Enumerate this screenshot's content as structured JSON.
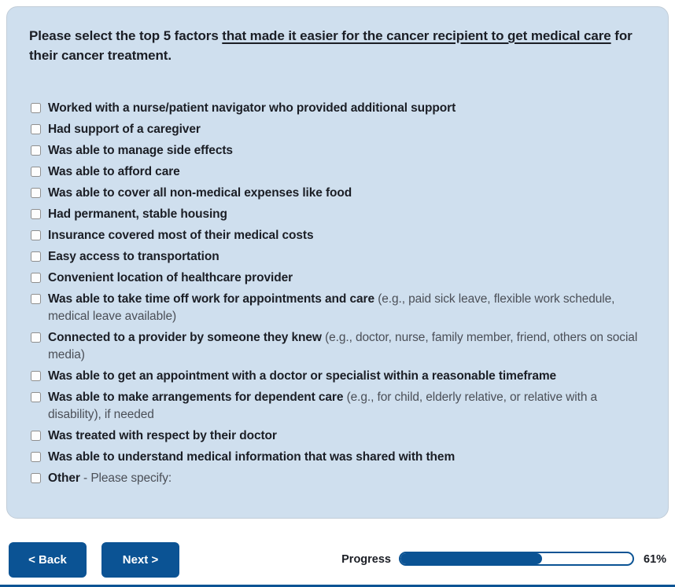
{
  "question": {
    "pre": "Please select the top 5 factors ",
    "underlined": "that made it easier for the cancer recipient to get medical care",
    "post": " for their cancer treatment."
  },
  "checklist": {
    "items": [
      {
        "bold": "Worked with a nurse/patient navigator who provided additional support",
        "normal": ""
      },
      {
        "bold": "Had support of a caregiver",
        "normal": ""
      },
      {
        "bold": "Was able to manage side effects",
        "normal": ""
      },
      {
        "bold": "Was able to afford care",
        "normal": ""
      },
      {
        "bold": "Was able to cover all non-medical expenses like food",
        "normal": ""
      },
      {
        "bold": "Had permanent, stable housing",
        "normal": ""
      },
      {
        "bold": "Insurance covered most of their medical costs",
        "normal": ""
      },
      {
        "bold": "Easy access to transportation",
        "normal": ""
      },
      {
        "bold": "Convenient location of healthcare provider",
        "normal": ""
      },
      {
        "bold": "Was able to take time off work for appointments and care",
        "normal": " (e.g., paid sick leave, flexible work schedule, medical leave available)"
      },
      {
        "bold": "Connected to a provider by someone they knew",
        "normal": " (e.g., doctor, nurse, family member, friend, others on social media)"
      },
      {
        "bold": "Was able to get an appointment with a doctor or specialist within a reasonable timeframe",
        "normal": ""
      },
      {
        "bold": "Was able to make arrangements for dependent care",
        "normal": " (e.g., for child, elderly relative, or relative with a disability), if needed"
      },
      {
        "bold": "Was treated with respect by their doctor",
        "normal": ""
      },
      {
        "bold": "Was able to understand medical information that was shared with them",
        "normal": ""
      },
      {
        "bold": "Other",
        "normal": " - Please specify:"
      }
    ]
  },
  "footer": {
    "back_label": "< Back",
    "next_label": "Next >",
    "progress_label": "Progress",
    "progress_percent_text": "61%",
    "progress_value": 61
  },
  "colors": {
    "panel_bg": "#cfdfee",
    "accent_blue": "#0b5394",
    "dark_text": "#1b1e25",
    "secondary_text": "#4b4f57"
  }
}
